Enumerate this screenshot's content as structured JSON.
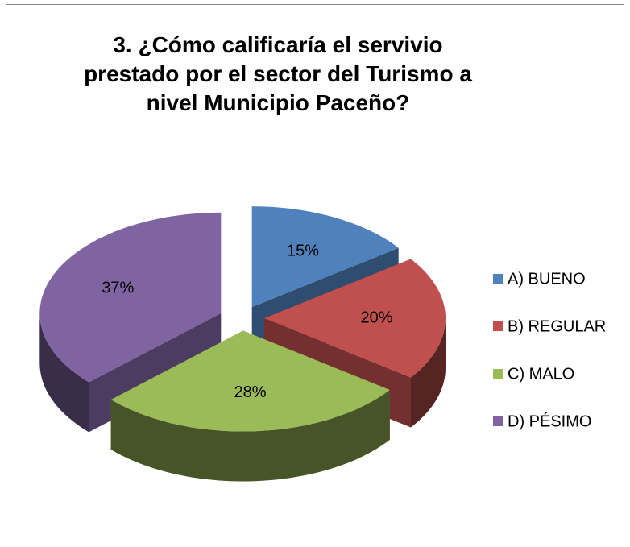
{
  "chart_data": {
    "type": "pie3d",
    "title": "3. ¿Cómo calificaría el servivio prestado por el sector del Turismo a nivel Municipio Paceño?",
    "categories": [
      "A) BUENO",
      "B) REGULAR",
      "C) MALO",
      "D) PÉSIMO"
    ],
    "values": [
      15,
      20,
      28,
      37
    ],
    "value_labels": [
      "15%",
      "20%",
      "28%",
      "37%"
    ],
    "colors": [
      "#4f81bd",
      "#c0504d",
      "#9bbb59",
      "#8064a2"
    ],
    "legend": "right"
  }
}
